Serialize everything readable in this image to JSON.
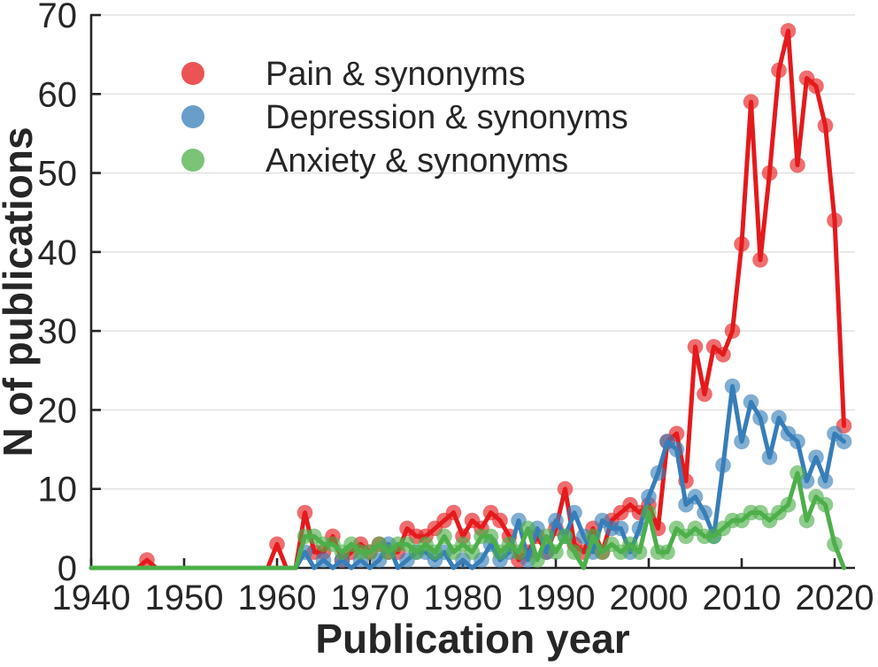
{
  "chart_data": {
    "type": "line",
    "title": "",
    "xlabel": "Publication year",
    "ylabel": "N of publications",
    "xlim": [
      1940,
      2022
    ],
    "ylim": [
      0,
      70
    ],
    "xticks": [
      1940,
      1950,
      1960,
      1970,
      1980,
      1990,
      2000,
      2010,
      2020
    ],
    "yticks": [
      0,
      10,
      20,
      30,
      40,
      50,
      60,
      70
    ],
    "grid": "horizontal",
    "legend_position": "top-left-inside",
    "axis_color": "#262626",
    "grid_color": "#e3e3e3",
    "marker_opacity": 0.63,
    "years": [
      1940,
      1941,
      1942,
      1943,
      1944,
      1945,
      1946,
      1947,
      1948,
      1949,
      1950,
      1951,
      1952,
      1953,
      1954,
      1955,
      1956,
      1957,
      1958,
      1959,
      1960,
      1961,
      1962,
      1963,
      1964,
      1965,
      1966,
      1967,
      1968,
      1969,
      1970,
      1971,
      1972,
      1973,
      1974,
      1975,
      1976,
      1977,
      1978,
      1979,
      1980,
      1981,
      1982,
      1983,
      1984,
      1985,
      1986,
      1987,
      1988,
      1989,
      1990,
      1991,
      1992,
      1993,
      1994,
      1995,
      1996,
      1997,
      1998,
      1999,
      2000,
      2001,
      2002,
      2003,
      2004,
      2005,
      2006,
      2007,
      2008,
      2009,
      2010,
      2011,
      2012,
      2013,
      2014,
      2015,
      2016,
      2017,
      2018,
      2019,
      2020,
      2021
    ],
    "series": [
      {
        "name": "Pain & synonyms",
        "color": "#e41a1c",
        "values": [
          0,
          0,
          0,
          0,
          0,
          0,
          1,
          0,
          0,
          0,
          0,
          0,
          0,
          0,
          0,
          0,
          0,
          0,
          0,
          0,
          3,
          0,
          0,
          7,
          2,
          2,
          4,
          1,
          2,
          3,
          2,
          3,
          2,
          2,
          5,
          4,
          4,
          5,
          6,
          7,
          4,
          6,
          5,
          7,
          6,
          4,
          1,
          2,
          4,
          2,
          5,
          10,
          3,
          2,
          5,
          2,
          6,
          7,
          8,
          7,
          8,
          5,
          16,
          17,
          11,
          28,
          22,
          28,
          27,
          30,
          41,
          59,
          39,
          50,
          63,
          68,
          51,
          62,
          61,
          56,
          44,
          18
        ]
      },
      {
        "name": "Depression & synonyms",
        "color": "#377eb8",
        "values": [
          0,
          0,
          0,
          0,
          0,
          0,
          0,
          0,
          0,
          0,
          0,
          0,
          0,
          0,
          0,
          0,
          0,
          0,
          0,
          0,
          0,
          0,
          0,
          2,
          0,
          1,
          0,
          1,
          0,
          1,
          0,
          1,
          3,
          0,
          1,
          2,
          2,
          1,
          2,
          0,
          1,
          0,
          1,
          3,
          1,
          2,
          6,
          1,
          5,
          2,
          6,
          4,
          7,
          4,
          2,
          6,
          5,
          5,
          2,
          5,
          9,
          12,
          16,
          15,
          8,
          9,
          7,
          4,
          13,
          23,
          16,
          21,
          19,
          14,
          19,
          17,
          16,
          11,
          14,
          11,
          17,
          16
        ]
      },
      {
        "name": "Anxiety & synonyms",
        "color": "#4daf4a",
        "values": [
          0,
          0,
          0,
          0,
          0,
          0,
          0,
          0,
          0,
          0,
          0,
          0,
          0,
          0,
          0,
          0,
          0,
          0,
          0,
          0,
          0,
          0,
          0,
          4,
          4,
          3,
          3,
          2,
          3,
          2,
          2,
          3,
          2,
          3,
          3,
          2,
          3,
          2,
          4,
          2,
          3,
          2,
          4,
          4,
          2,
          3,
          2,
          5,
          1,
          4,
          2,
          4,
          2,
          0,
          4,
          2,
          3,
          2,
          3,
          2,
          7,
          2,
          2,
          5,
          4,
          5,
          4,
          4,
          5,
          6,
          6,
          7,
          7,
          6,
          7,
          8,
          12,
          6,
          9,
          8,
          3,
          0
        ]
      }
    ]
  }
}
